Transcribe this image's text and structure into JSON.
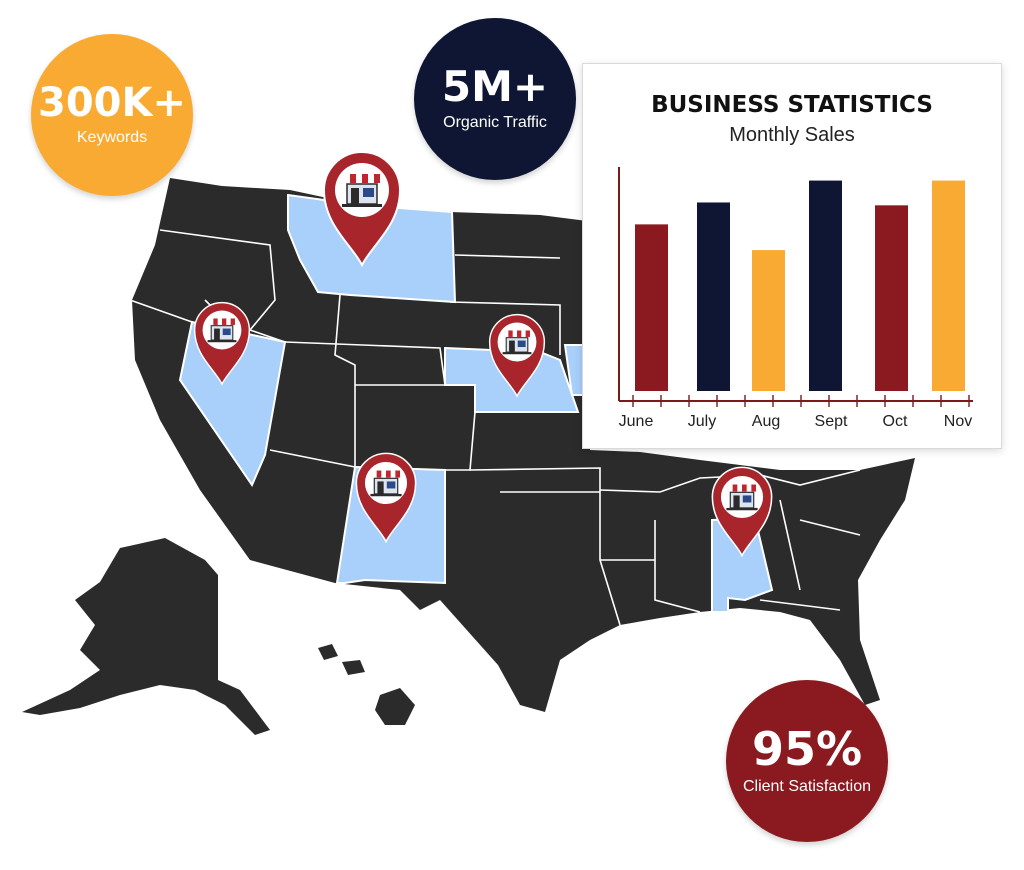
{
  "stats": [
    {
      "id": "keywords",
      "value": "300K+",
      "label": "Keywords",
      "color": "#f9aa33"
    },
    {
      "id": "traffic",
      "value": "5M+",
      "label": "Organic Traffic",
      "color": "#0f1633"
    },
    {
      "id": "satisfaction",
      "value": "95%",
      "label": "Client Satisfaction",
      "color": "#8a1a1f"
    }
  ],
  "map": {
    "land_color": "#2b2b2b",
    "border_color": "#ffffff",
    "highlight_color": "#a8d0fb",
    "pin_color": "#a8252c",
    "pin_icon": "storefront-icon",
    "highlighted_states": [
      "Montana",
      "Nevada",
      "Nebraska",
      "New Mexico",
      "Alabama",
      "Iowa"
    ]
  },
  "chart_data": {
    "type": "bar",
    "title": "BUSINESS STATISTICS",
    "subtitle": "Monthly Sales",
    "categories": [
      "June",
      "July",
      "Aug",
      "Sept",
      "Oct",
      "Nov"
    ],
    "values": [
      175,
      198,
      148,
      221,
      195,
      221
    ],
    "colors": [
      "#8a1a1f",
      "#0f1633",
      "#f9aa33",
      "#0f1633",
      "#8a1a1f",
      "#f9aa33"
    ],
    "xlabel": "",
    "ylabel": "",
    "ylim": [
      0,
      230
    ],
    "grid": false,
    "axis_color": "#7a1a1a"
  }
}
